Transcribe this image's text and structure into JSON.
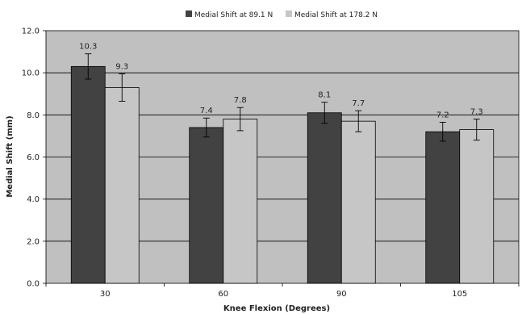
{
  "chart_data": {
    "type": "bar",
    "categories": [
      "30",
      "60",
      "90",
      "105"
    ],
    "series": [
      {
        "name": "Medial Shift at 89.1 N",
        "values": [
          10.3,
          7.4,
          8.1,
          7.2
        ],
        "errors": [
          0.6,
          0.45,
          0.5,
          0.45
        ],
        "color": "#424242"
      },
      {
        "name": "Medial Shift at 178.2 N",
        "values": [
          9.3,
          7.8,
          7.7,
          7.3
        ],
        "errors": [
          0.65,
          0.55,
          0.5,
          0.5
        ],
        "color": "#c6c6c6"
      }
    ],
    "data_labels": [
      [
        "10.3",
        "7.4",
        "8.1",
        "7.2"
      ],
      [
        "9.3",
        "7.8",
        "7.7",
        "7.3"
      ]
    ],
    "title": "",
    "xlabel": "Knee Flexion (Degrees)",
    "ylabel": "Medial Shift (mm)",
    "ylim": [
      0,
      12
    ],
    "yticks": [
      "0.0",
      "2.0",
      "4.0",
      "6.0",
      "8.0",
      "10.0",
      "12.0"
    ],
    "grid": true,
    "legend_position": "top-right",
    "plot_background": "#c0c0c0"
  }
}
